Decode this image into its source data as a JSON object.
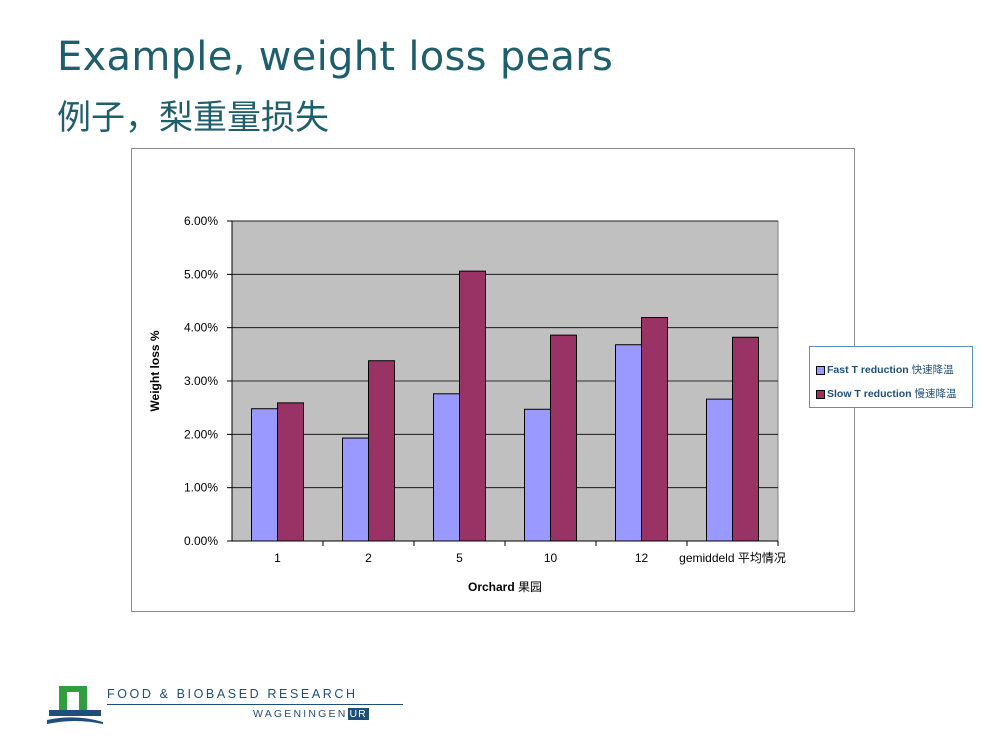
{
  "slide": {
    "title": "Example, weight loss pears",
    "title_cn": "例子，梨重量损失"
  },
  "chart_data": {
    "type": "bar",
    "categories": [
      "1",
      "2",
      "5",
      "10",
      "12",
      "gemiddeld 平均情况"
    ],
    "series": [
      {
        "name": "Fast T reduction 快速降温",
        "color": "#9999ff",
        "values": [
          2.48,
          1.93,
          2.76,
          2.47,
          3.68,
          2.66
        ]
      },
      {
        "name": "Slow T reduction 慢速降温",
        "color": "#993366",
        "values": [
          2.59,
          3.38,
          5.06,
          3.86,
          4.19,
          3.82
        ]
      }
    ],
    "ylim": [
      0,
      6
    ],
    "yticks": [
      "0.00%",
      "1.00%",
      "2.00%",
      "3.00%",
      "4.00%",
      "5.00%",
      "6.00%"
    ],
    "xlabel": "Orchard 果园",
    "ylabel": "Weight loss %",
    "grid": true,
    "legend_position": "right",
    "plot_background": "#c0c0c0"
  },
  "footer": {
    "org_line": "FOOD & BIOBASED RESEARCH",
    "wageningen": "WAGENINGEN",
    "ur": "UR",
    "brand_color": "#1f4e79",
    "logo_green": "#2e9e3e"
  }
}
